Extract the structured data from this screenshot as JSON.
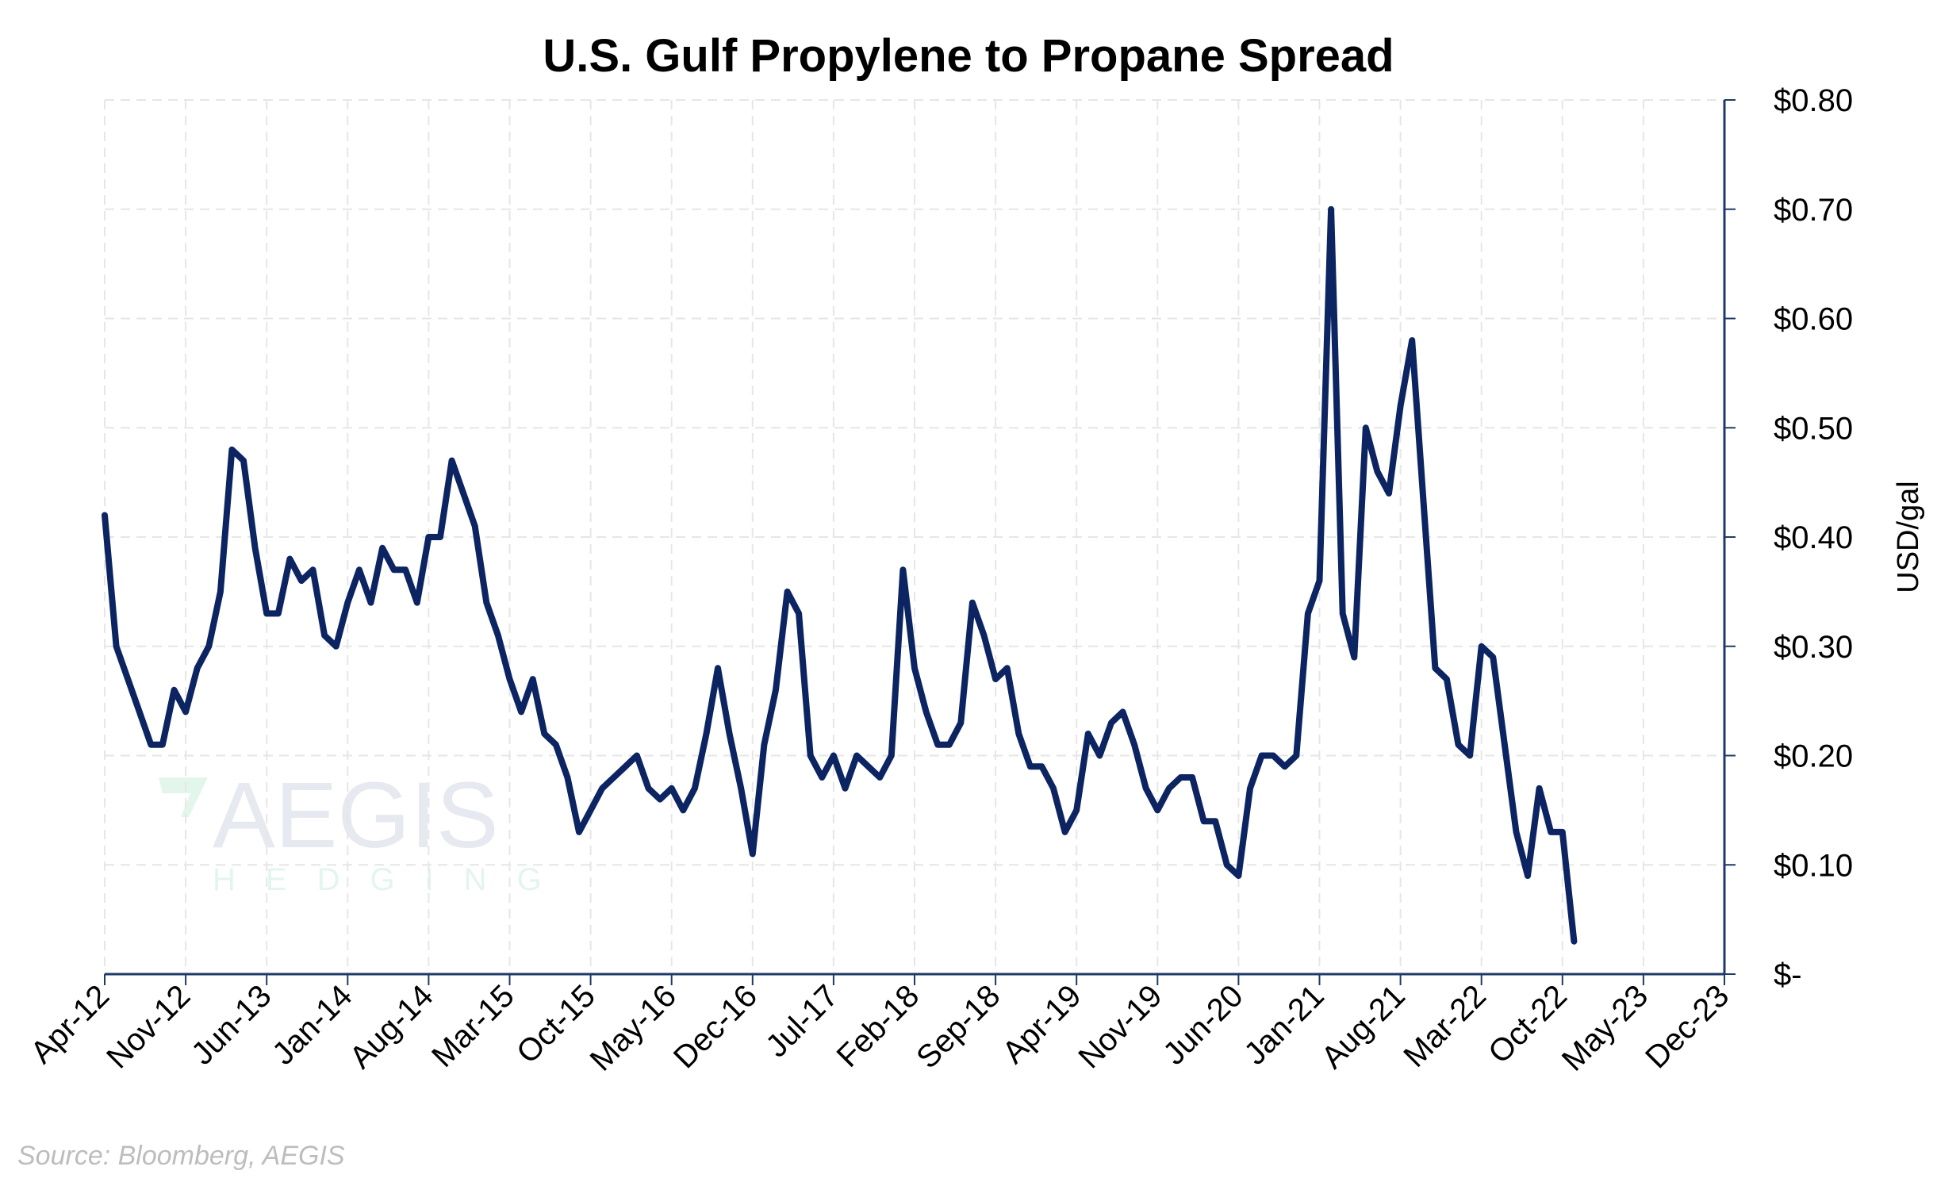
{
  "chart_data": {
    "type": "line",
    "title": "U.S. Gulf Propylene to Propane Spread",
    "y_axis_label": "USD/gal",
    "source": "Source: Bloomberg, AEGIS",
    "watermark": {
      "title": "AEGIS",
      "subtitle": "HEDGING"
    },
    "color": "#0c2461",
    "grid": true,
    "y_axis_side": "right",
    "xlim": [
      "2012-04",
      "2023-12"
    ],
    "xticks": [
      {
        "value": "2012-04",
        "label": "Apr-12"
      },
      {
        "value": "2012-11",
        "label": "Nov-12"
      },
      {
        "value": "2013-06",
        "label": "Jun-13"
      },
      {
        "value": "2014-01",
        "label": "Jan-14"
      },
      {
        "value": "2014-08",
        "label": "Aug-14"
      },
      {
        "value": "2015-03",
        "label": "Mar-15"
      },
      {
        "value": "2015-10",
        "label": "Oct-15"
      },
      {
        "value": "2016-05",
        "label": "May-16"
      },
      {
        "value": "2016-12",
        "label": "Dec-16"
      },
      {
        "value": "2017-07",
        "label": "Jul-17"
      },
      {
        "value": "2018-02",
        "label": "Feb-18"
      },
      {
        "value": "2018-09",
        "label": "Sep-18"
      },
      {
        "value": "2019-04",
        "label": "Apr-19"
      },
      {
        "value": "2019-11",
        "label": "Nov-19"
      },
      {
        "value": "2020-06",
        "label": "Jun-20"
      },
      {
        "value": "2021-01",
        "label": "Jan-21"
      },
      {
        "value": "2021-08",
        "label": "Aug-21"
      },
      {
        "value": "2022-03",
        "label": "Mar-22"
      },
      {
        "value": "2022-10",
        "label": "Oct-22"
      },
      {
        "value": "2023-05",
        "label": "May-23"
      },
      {
        "value": "2023-12",
        "label": "Dec-23"
      }
    ],
    "ylim": [
      0,
      0.8
    ],
    "yticks": [
      {
        "value": 0,
        "label": "$-"
      },
      {
        "value": 0.1,
        "label": "$0.10"
      },
      {
        "value": 0.2,
        "label": "$0.20"
      },
      {
        "value": 0.3,
        "label": "$0.30"
      },
      {
        "value": 0.4,
        "label": "$0.40"
      },
      {
        "value": 0.5,
        "label": "$0.50"
      },
      {
        "value": 0.6,
        "label": "$0.60"
      },
      {
        "value": 0.7,
        "label": "$0.70"
      },
      {
        "value": 0.8,
        "label": "$0.80"
      }
    ],
    "x": [
      "2012-04",
      "2012-05",
      "2012-06",
      "2012-07",
      "2012-08",
      "2012-09",
      "2012-10",
      "2012-11",
      "2012-12",
      "2013-01",
      "2013-02",
      "2013-03",
      "2013-04",
      "2013-05",
      "2013-06",
      "2013-07",
      "2013-08",
      "2013-09",
      "2013-10",
      "2013-11",
      "2013-12",
      "2014-01",
      "2014-02",
      "2014-03",
      "2014-04",
      "2014-05",
      "2014-06",
      "2014-07",
      "2014-08",
      "2014-09",
      "2014-10",
      "2014-11",
      "2014-12",
      "2015-01",
      "2015-02",
      "2015-03",
      "2015-04",
      "2015-05",
      "2015-06",
      "2015-07",
      "2015-08",
      "2015-09",
      "2015-10",
      "2015-11",
      "2015-12",
      "2016-01",
      "2016-02",
      "2016-03",
      "2016-04",
      "2016-05",
      "2016-06",
      "2016-07",
      "2016-08",
      "2016-09",
      "2016-10",
      "2016-11",
      "2016-12",
      "2017-01",
      "2017-02",
      "2017-03",
      "2017-04",
      "2017-05",
      "2017-06",
      "2017-07",
      "2017-08",
      "2017-09",
      "2017-10",
      "2017-11",
      "2017-12",
      "2018-01",
      "2018-02",
      "2018-03",
      "2018-04",
      "2018-05",
      "2018-06",
      "2018-07",
      "2018-08",
      "2018-09",
      "2018-10",
      "2018-11",
      "2018-12",
      "2019-01",
      "2019-02",
      "2019-03",
      "2019-04",
      "2019-05",
      "2019-06",
      "2019-07",
      "2019-08",
      "2019-09",
      "2019-10",
      "2019-11",
      "2019-12",
      "2020-01",
      "2020-02",
      "2020-03",
      "2020-04",
      "2020-05",
      "2020-06",
      "2020-07",
      "2020-08",
      "2020-09",
      "2020-10",
      "2020-11",
      "2020-12",
      "2021-01",
      "2021-02",
      "2021-03",
      "2021-04",
      "2021-05",
      "2021-06",
      "2021-07",
      "2021-08",
      "2021-09",
      "2021-10",
      "2021-11",
      "2021-12",
      "2022-01",
      "2022-02",
      "2022-03",
      "2022-04",
      "2022-05",
      "2022-06",
      "2022-07",
      "2022-08",
      "2022-09",
      "2022-10",
      "2022-11"
    ],
    "values": [
      0.42,
      0.3,
      0.27,
      0.24,
      0.21,
      0.21,
      0.26,
      0.24,
      0.28,
      0.3,
      0.35,
      0.48,
      0.47,
      0.39,
      0.33,
      0.33,
      0.38,
      0.36,
      0.37,
      0.31,
      0.3,
      0.34,
      0.37,
      0.34,
      0.39,
      0.37,
      0.37,
      0.34,
      0.4,
      0.4,
      0.47,
      0.44,
      0.41,
      0.34,
      0.31,
      0.27,
      0.24,
      0.27,
      0.22,
      0.21,
      0.18,
      0.13,
      0.15,
      0.17,
      0.18,
      0.19,
      0.2,
      0.17,
      0.16,
      0.17,
      0.15,
      0.17,
      0.22,
      0.28,
      0.22,
      0.17,
      0.11,
      0.21,
      0.26,
      0.35,
      0.33,
      0.2,
      0.18,
      0.2,
      0.17,
      0.2,
      0.19,
      0.18,
      0.2,
      0.37,
      0.28,
      0.24,
      0.21,
      0.21,
      0.23,
      0.34,
      0.31,
      0.27,
      0.28,
      0.22,
      0.19,
      0.19,
      0.17,
      0.13,
      0.15,
      0.22,
      0.2,
      0.23,
      0.24,
      0.21,
      0.17,
      0.15,
      0.17,
      0.18,
      0.18,
      0.14,
      0.14,
      0.1,
      0.09,
      0.17,
      0.2,
      0.2,
      0.19,
      0.2,
      0.33,
      0.36,
      0.7,
      0.33,
      0.29,
      0.5,
      0.46,
      0.44,
      0.52,
      0.58,
      0.43,
      0.28,
      0.27,
      0.21,
      0.2,
      0.3,
      0.29,
      0.21,
      0.13,
      0.09,
      0.17,
      0.13,
      0.13,
      0.03
    ]
  }
}
